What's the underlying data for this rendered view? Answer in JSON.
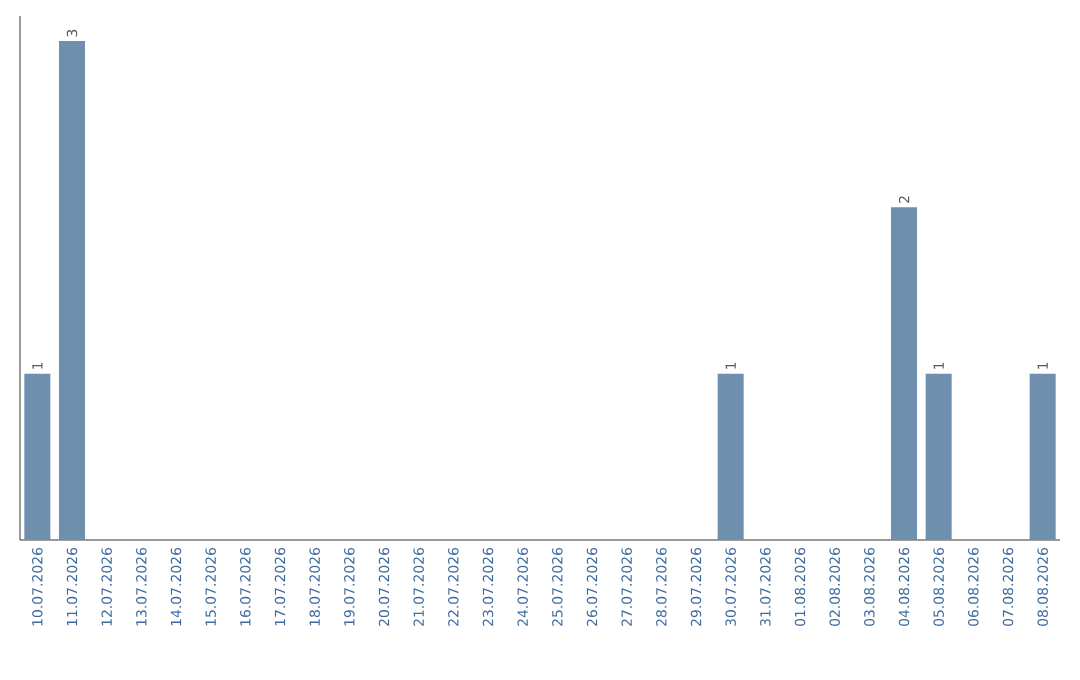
{
  "chart_data": {
    "type": "bar",
    "categories": [
      "10.07.2026",
      "11.07.2026",
      "12.07.2026",
      "13.07.2026",
      "14.07.2026",
      "15.07.2026",
      "16.07.2026",
      "17.07.2026",
      "18.07.2026",
      "19.07.2026",
      "20.07.2026",
      "21.07.2026",
      "22.07.2026",
      "23.07.2026",
      "24.07.2026",
      "25.07.2026",
      "26.07.2026",
      "27.07.2026",
      "28.07.2026",
      "29.07.2026",
      "30.07.2026",
      "31.07.2026",
      "01.08.2026",
      "02.08.2026",
      "03.08.2026",
      "04.08.2026",
      "05.08.2026",
      "06.08.2026",
      "07.08.2026",
      "08.08.2026"
    ],
    "values": [
      1,
      3,
      0,
      0,
      0,
      0,
      0,
      0,
      0,
      0,
      0,
      0,
      0,
      0,
      0,
      0,
      0,
      0,
      0,
      0,
      1,
      0,
      0,
      0,
      0,
      2,
      1,
      0,
      0,
      1
    ],
    "value_labels": [
      "1",
      "3",
      null,
      null,
      null,
      null,
      null,
      null,
      null,
      null,
      null,
      null,
      null,
      null,
      null,
      null,
      null,
      null,
      null,
      null,
      "1",
      null,
      null,
      null,
      null,
      "2",
      "1",
      null,
      null,
      "1"
    ],
    "color": "#6e8fae"
  }
}
